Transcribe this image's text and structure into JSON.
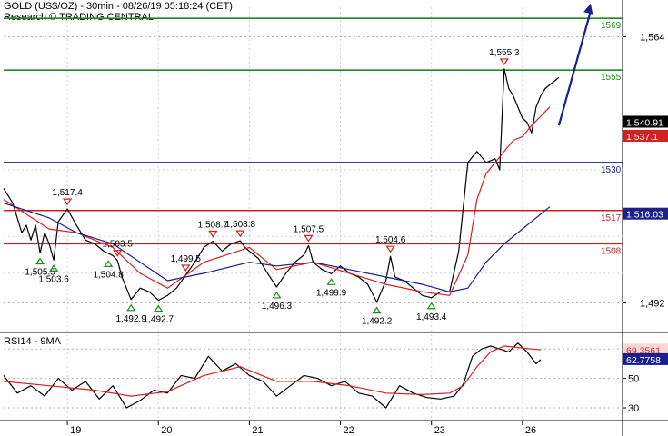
{
  "header": {
    "title": "GOLD (US$/OZ) - 30min - 08/26/19 05:18:24 (CET)",
    "source": "Research © TRADING CENTRAL"
  },
  "chart_data": [
    {
      "type": "line",
      "panel": "price",
      "ylim": [
        1484,
        1572
      ],
      "y_ticks": [
        "1,564",
        "1,492"
      ],
      "y_tick_values": [
        1564,
        1492
      ],
      "x_tick_labels": [
        "19",
        "20",
        "21",
        "22",
        "23",
        "26"
      ],
      "x_tick_positions": [
        0.5,
        1.5,
        2.5,
        3.5,
        4.5,
        5.5
      ],
      "xlim": [
        -0.2,
        6.6
      ],
      "series": [
        {
          "role": "price",
          "color": "#000000",
          "x": [
            -0.2,
            -0.1,
            0.0,
            0.05,
            0.1,
            0.15,
            0.2,
            0.25,
            0.3,
            0.35,
            0.4,
            0.5,
            0.6,
            0.7,
            0.8,
            0.9,
            1.0,
            1.05,
            1.1,
            1.2,
            1.3,
            1.4,
            1.5,
            1.6,
            1.7,
            1.8,
            1.9,
            2.0,
            2.1,
            2.2,
            2.3,
            2.4,
            2.45,
            2.5,
            2.6,
            2.7,
            2.8,
            2.9,
            3.0,
            3.1,
            3.15,
            3.2,
            3.3,
            3.4,
            3.5,
            3.6,
            3.7,
            3.8,
            3.9,
            4.0,
            4.05,
            4.1,
            4.2,
            4.3,
            4.4,
            4.5,
            4.6,
            4.7,
            4.8,
            4.9,
            5.0,
            5.1,
            5.2,
            5.25,
            5.3,
            5.35,
            5.4,
            5.45,
            5.5,
            5.55,
            5.6,
            5.65,
            5.7,
            5.75,
            5.8,
            5.85,
            5.9
          ],
          "y": [
            1523,
            1519,
            1511,
            1513,
            1509,
            1513,
            1505.5,
            1511,
            1508,
            1503.6,
            1514,
            1517.4,
            1513,
            1509,
            1508,
            1506,
            1504.8,
            1503.5,
            1499,
            1492.9,
            1496,
            1495,
            1492.7,
            1494,
            1496,
            1499.5,
            1503,
            1507,
            1508.7,
            1506,
            1508,
            1508.8,
            1507,
            1506,
            1504,
            1500,
            1496.3,
            1500,
            1503,
            1505,
            1507.5,
            1503,
            1501,
            1499.9,
            1502,
            1500,
            1499,
            1497,
            1492.2,
            1498,
            1504.6,
            1499,
            1498,
            1496,
            1494,
            1493.4,
            1495,
            1495,
            1506,
            1530,
            1533,
            1530,
            1531,
            1528,
            1555.3,
            1550,
            1548,
            1545,
            1542,
            1540.91,
            1538,
            1545,
            1548,
            1550,
            1551,
            1552,
            1553
          ]
        },
        {
          "role": "fast-ma",
          "color": "#d42020",
          "x": [
            -0.2,
            0.3,
            0.6,
            1.0,
            1.3,
            1.6,
            2.0,
            2.5,
            2.8,
            3.2,
            3.6,
            4.0,
            4.4,
            4.7,
            4.9,
            5.0,
            5.1,
            5.2,
            5.3,
            5.4,
            5.5,
            5.6,
            5.8
          ],
          "y": [
            1520,
            1512,
            1511,
            1507,
            1500,
            1496,
            1503,
            1507,
            1501,
            1503,
            1500,
            1497,
            1495,
            1494,
            1505,
            1520,
            1527,
            1530,
            1533,
            1536,
            1537,
            1540,
            1545
          ]
        },
        {
          "role": "slow-ma",
          "color": "#1a1f8c",
          "x": [
            -0.2,
            0.3,
            0.6,
            1.0,
            1.3,
            1.6,
            2.0,
            2.5,
            2.8,
            3.2,
            3.6,
            4.0,
            4.4,
            4.7,
            4.9,
            5.1,
            5.3,
            5.5,
            5.7,
            5.8
          ],
          "y": [
            1519,
            1515,
            1511,
            1508,
            1503,
            1498,
            1500,
            1503,
            1502,
            1503,
            1501,
            1499,
            1497,
            1495,
            1496,
            1503,
            1508,
            1512,
            1516,
            1518
          ]
        }
      ],
      "levels": [
        {
          "label": "1569",
          "value": 1569,
          "color": "#1f8a1f"
        },
        {
          "label": "1555",
          "value": 1555,
          "color": "#1f8a1f"
        },
        {
          "label": "1530",
          "value": 1530,
          "color": "#1a1f8c"
        },
        {
          "label": "1517",
          "value": 1517,
          "color": "#cc1f1f"
        },
        {
          "label": "1508",
          "value": 1508,
          "color": "#cc1f1f"
        }
      ],
      "badges": [
        {
          "label": "1,540.91",
          "value": 1540.91,
          "bg": "#000000",
          "fg": "#ffffff"
        },
        {
          "label": "1,537.1",
          "value": 1537.1,
          "bg": "#d42020",
          "fg": "#ffffff"
        },
        {
          "label": "1,516.03",
          "value": 1516.03,
          "bg": "#1a1f8c",
          "fg": "#ffffff"
        }
      ],
      "pivots_high": [
        {
          "label": "1,517.4",
          "x": 0.5,
          "y": 1517.4
        },
        {
          "label": "1,503.5",
          "x": 1.05,
          "y": 1503.5
        },
        {
          "label": "1,499.5",
          "x": 1.8,
          "y": 1499.5
        },
        {
          "label": "1,508.7",
          "x": 2.1,
          "y": 1508.7
        },
        {
          "label": "1,508.8",
          "x": 2.4,
          "y": 1508.8
        },
        {
          "label": "1,507.5",
          "x": 3.15,
          "y": 1507.5
        },
        {
          "label": "1,504.6",
          "x": 4.05,
          "y": 1504.6
        },
        {
          "label": "1,555.3",
          "x": 5.3,
          "y": 1555.3
        }
      ],
      "pivots_low": [
        {
          "label": "1,505.5",
          "x": 0.2,
          "y": 1505.5
        },
        {
          "label": "1,503.6",
          "x": 0.35,
          "y": 1503.6
        },
        {
          "label": "1,504.8",
          "x": 0.95,
          "y": 1504.8
        },
        {
          "label": "1,492.9",
          "x": 1.2,
          "y": 1492.9
        },
        {
          "label": "1,492.7",
          "x": 1.5,
          "y": 1492.7
        },
        {
          "label": "1,496.3",
          "x": 2.8,
          "y": 1496.3
        },
        {
          "label": "1,499.9",
          "x": 3.4,
          "y": 1499.9
        },
        {
          "label": "1,492.2",
          "x": 3.9,
          "y": 1492.2
        },
        {
          "label": "1,493.4",
          "x": 4.5,
          "y": 1493.4
        }
      ],
      "projection_arrow": {
        "from": [
          5.9,
          1540
        ],
        "to": [
          6.25,
          1573
        ],
        "color": "#1a1f8c"
      }
    },
    {
      "type": "line",
      "panel": "indicator",
      "title": "RSI14 - 9MA",
      "ylim": [
        22,
        80
      ],
      "y_ticks": [
        "70",
        "50",
        "30"
      ],
      "y_tick_values": [
        70,
        50,
        30
      ],
      "series": [
        {
          "role": "rsi",
          "color": "#000000",
          "x": [
            -0.2,
            -0.05,
            0.1,
            0.25,
            0.4,
            0.55,
            0.7,
            0.85,
            1.0,
            1.15,
            1.3,
            1.45,
            1.6,
            1.75,
            1.9,
            2.05,
            2.2,
            2.35,
            2.5,
            2.65,
            2.8,
            2.95,
            3.1,
            3.25,
            3.4,
            3.55,
            3.7,
            3.85,
            4.0,
            4.15,
            4.3,
            4.45,
            4.6,
            4.75,
            4.85,
            4.95,
            5.05,
            5.15,
            5.25,
            5.35,
            5.45,
            5.55,
            5.65,
            5.7
          ],
          "y": [
            52,
            40,
            45,
            38,
            50,
            42,
            48,
            36,
            45,
            30,
            35,
            42,
            40,
            52,
            50,
            65,
            55,
            60,
            52,
            48,
            38,
            45,
            52,
            50,
            45,
            48,
            40,
            38,
            30,
            45,
            40,
            37,
            36,
            38,
            46,
            65,
            70,
            72,
            70,
            68,
            74,
            68,
            60,
            62.78
          ]
        },
        {
          "role": "rsi-ma",
          "color": "#d42020",
          "x": [
            -0.2,
            0.3,
            0.8,
            1.2,
            1.6,
            2.0,
            2.4,
            2.8,
            3.2,
            3.6,
            4.0,
            4.4,
            4.7,
            4.85,
            5.0,
            5.15,
            5.3,
            5.45,
            5.6,
            5.7
          ],
          "y": [
            48,
            45,
            42,
            38,
            41,
            52,
            58,
            48,
            48,
            45,
            40,
            39,
            40,
            45,
            58,
            68,
            72,
            71,
            70,
            69.36
          ]
        }
      ],
      "badges": [
        {
          "label": "69.3561",
          "value": 69.3561,
          "bg": "#ffd6d6",
          "fg": "#d42020"
        },
        {
          "label": "62.7758",
          "value": 62.7758,
          "bg": "#1a1f8c",
          "fg": "#ffffff"
        }
      ]
    }
  ]
}
